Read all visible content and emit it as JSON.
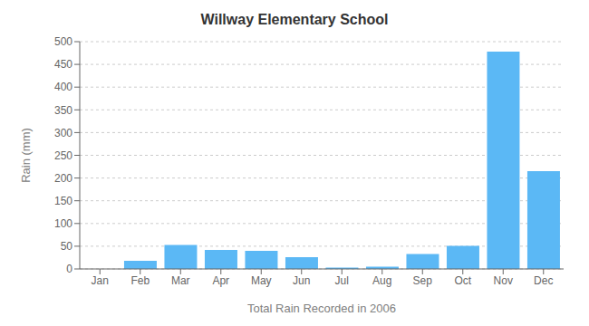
{
  "chart_data": {
    "type": "bar",
    "title": "Willway Elementary School",
    "xlabel": "Total Rain Recorded in 2006",
    "ylabel": "Rain (mm)",
    "categories": [
      "Jan",
      "Feb",
      "Mar",
      "Apr",
      "May",
      "Jun",
      "Jul",
      "Aug",
      "Sep",
      "Oct",
      "Nov",
      "Dec"
    ],
    "values": [
      0,
      18,
      53,
      42,
      40,
      26,
      3,
      5,
      33,
      51,
      478,
      215
    ],
    "color": "#5BB8F5",
    "ylim": [
      0,
      500
    ],
    "yticks": [
      0,
      50,
      100,
      150,
      200,
      250,
      300,
      350,
      400,
      450,
      500
    ],
    "grid": true
  }
}
